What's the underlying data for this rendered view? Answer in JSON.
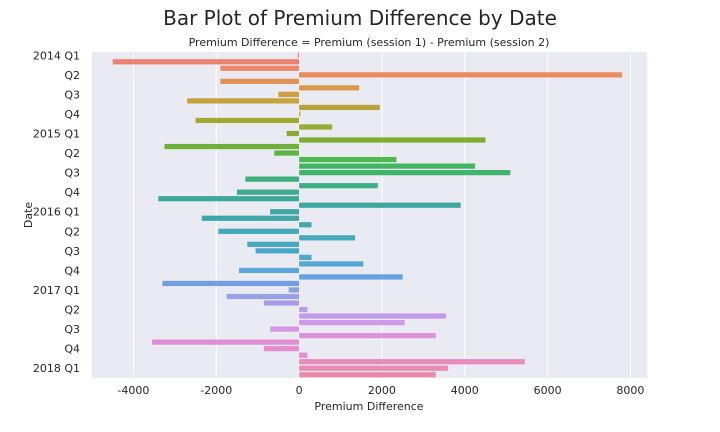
{
  "chart_data": {
    "type": "bar",
    "orientation": "horizontal",
    "title": "Bar Plot of Premium Difference by Date",
    "subtitle": "Premium Difference = Premium (session 1) - Premium (session 2)",
    "xlabel": "Premium Difference",
    "ylabel": "Date",
    "xlim": [
      -5000,
      8400
    ],
    "xticks": [
      -4000,
      -2000,
      0,
      2000,
      4000,
      6000,
      8000
    ],
    "grid": true,
    "ytick_labels": [
      "2014 Q1",
      "Q2",
      "Q3",
      "Q4",
      "2015 Q1",
      "Q2",
      "Q3",
      "Q4",
      "2016 Q1",
      "Q2",
      "Q3",
      "Q4",
      "2017 Q1",
      "Q2",
      "Q3",
      "Q4",
      "2018 Q1"
    ],
    "bars_per_label": 3,
    "values": [
      -30,
      -4500,
      -1900,
      7800,
      -1900,
      1450,
      -500,
      -2700,
      1950,
      30,
      -2500,
      800,
      -300,
      4500,
      -3250,
      -600,
      2350,
      4250,
      5100,
      -1300,
      1900,
      -1500,
      -3400,
      3900,
      -700,
      -2350,
      300,
      -1950,
      1350,
      -1250,
      -1050,
      300,
      1550,
      -1450,
      2500,
      -3300,
      -250,
      -1750,
      -850,
      200,
      3550,
      2550,
      -700,
      3300,
      -3550,
      -850,
      200,
      5450,
      3600,
      3300
    ],
    "colors": [
      "#f07878",
      "#ee8070",
      "#ec8868",
      "#e98c5e",
      "#e29156",
      "#d89a4a",
      "#ce9e44",
      "#c4a23c",
      "#b8a33a",
      "#aea636",
      "#a3a833",
      "#98ab35",
      "#8aaa33",
      "#7eac32",
      "#6fb03a",
      "#5fb343",
      "#4db84e",
      "#41b660",
      "#3eb46c",
      "#3cb078",
      "#3eae84",
      "#3faa8e",
      "#3ea898",
      "#3ea79e",
      "#3fa6a2",
      "#3fa6a8",
      "#42a6ae",
      "#44a8b6",
      "#47a9bc",
      "#48a8c2",
      "#4aa6c8",
      "#4ea8cf",
      "#53a8d6",
      "#5aa6dc",
      "#62a0e0",
      "#739ee2",
      "#86a0e6",
      "#98a0ea",
      "#a89ce8",
      "#b69cea",
      "#c29bea",
      "#ce99e8",
      "#d897e4",
      "#de92dc",
      "#e08ed6",
      "#e48ecf",
      "#e68cc6",
      "#e88cbc",
      "#ea8cb2",
      "#ec8aa6"
    ]
  }
}
